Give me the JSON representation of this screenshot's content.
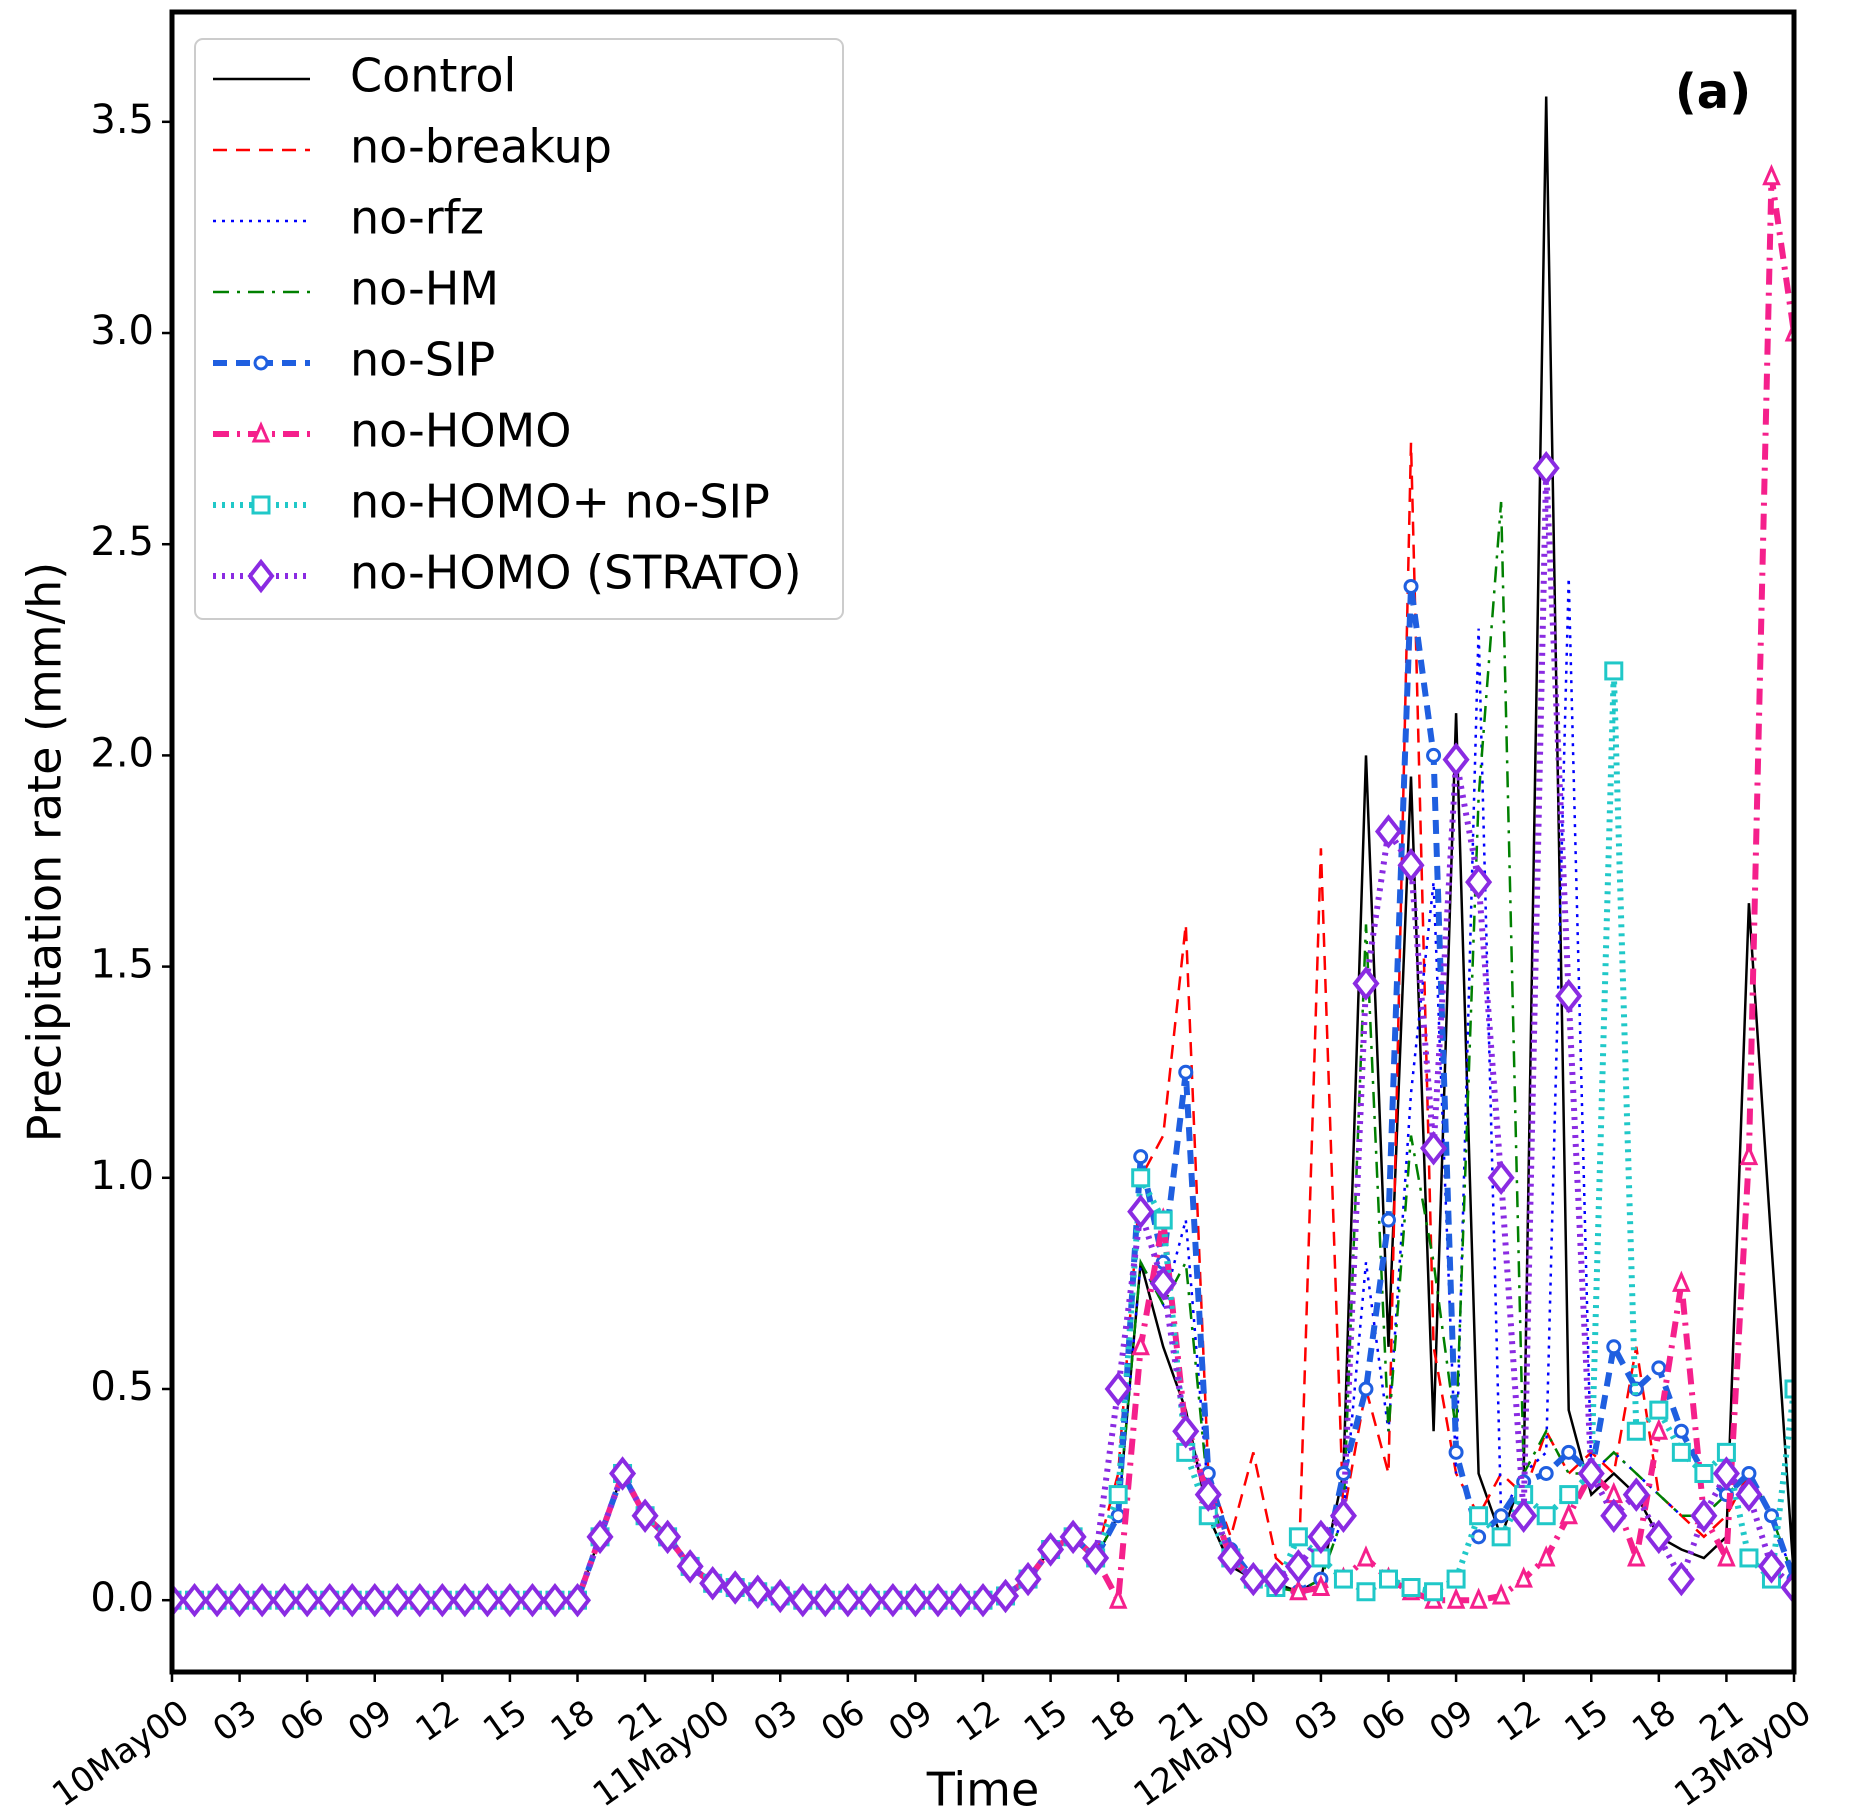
{
  "chart_data": {
    "type": "line",
    "xlabel": "Time",
    "ylabel": "Precipitation rate (mm/h)",
    "annotation": "(a)",
    "x": [
      0,
      1,
      2,
      3,
      4,
      5,
      6,
      7,
      8,
      9,
      10,
      11,
      12,
      13,
      14,
      15,
      16,
      17,
      18,
      19,
      20,
      21,
      22,
      23,
      24,
      25,
      26,
      27,
      28,
      29,
      30,
      31,
      32,
      33,
      34,
      35,
      36,
      37,
      38,
      39,
      40,
      41,
      42,
      43,
      44,
      45,
      46,
      47,
      48,
      49,
      50,
      51,
      52,
      53,
      54,
      55,
      56,
      57,
      58,
      59,
      60,
      61,
      62,
      63,
      64,
      65,
      66,
      67,
      68,
      69,
      70,
      71,
      72
    ],
    "xlim": [
      0,
      72
    ],
    "xticks": [
      {
        "value": 0,
        "label": "10May00"
      },
      {
        "value": 3,
        "label": "03"
      },
      {
        "value": 6,
        "label": "06"
      },
      {
        "value": 9,
        "label": "09"
      },
      {
        "value": 12,
        "label": "12"
      },
      {
        "value": 15,
        "label": "15"
      },
      {
        "value": 18,
        "label": "18"
      },
      {
        "value": 21,
        "label": "21"
      },
      {
        "value": 24,
        "label": "11May00"
      },
      {
        "value": 27,
        "label": "03"
      },
      {
        "value": 30,
        "label": "06"
      },
      {
        "value": 33,
        "label": "09"
      },
      {
        "value": 36,
        "label": "12"
      },
      {
        "value": 39,
        "label": "15"
      },
      {
        "value": 42,
        "label": "18"
      },
      {
        "value": 45,
        "label": "21"
      },
      {
        "value": 48,
        "label": "12May00"
      },
      {
        "value": 51,
        "label": "03"
      },
      {
        "value": 54,
        "label": "06"
      },
      {
        "value": 57,
        "label": "09"
      },
      {
        "value": 60,
        "label": "12"
      },
      {
        "value": 63,
        "label": "15"
      },
      {
        "value": 66,
        "label": "18"
      },
      {
        "value": 69,
        "label": "21"
      },
      {
        "value": 72,
        "label": "13May00"
      }
    ],
    "ylim": [
      -0.17,
      3.76
    ],
    "yticks": [
      {
        "value": 0,
        "label": "0.0"
      },
      {
        "value": 0.5,
        "label": "0.5"
      },
      {
        "value": 1,
        "label": "1.0"
      },
      {
        "value": 1.5,
        "label": "1.5"
      },
      {
        "value": 2,
        "label": "2.0"
      },
      {
        "value": 2.5,
        "label": "2.5"
      },
      {
        "value": 3,
        "label": "3.0"
      },
      {
        "value": 3.5,
        "label": "3.5"
      }
    ],
    "legend": "upper left",
    "series": [
      {
        "name": "Control",
        "color": "#000000",
        "linestyle": "solid",
        "marker": "none",
        "values": [
          0,
          0,
          0,
          0,
          0,
          0,
          0,
          0,
          0,
          0,
          0,
          0,
          0,
          0,
          0,
          0,
          0,
          0,
          0,
          0.15,
          0.3,
          0.2,
          0.15,
          0.08,
          0.04,
          0.03,
          0.02,
          0.01,
          0,
          0,
          0,
          0,
          0,
          0,
          0,
          0,
          0,
          0.01,
          0.05,
          0.12,
          0.15,
          0.1,
          0.2,
          0.8,
          0.6,
          0.45,
          0.2,
          0.08,
          0.05,
          0.04,
          0.02,
          0.05,
          0.3,
          2.0,
          0.6,
          1.95,
          0.4,
          2.1,
          0.3,
          0.15,
          0.3,
          3.56,
          0.45,
          0.25,
          0.3,
          0.25,
          0.15,
          0.12,
          0.1,
          0.15,
          1.65,
          0.84,
          0.05
        ]
      },
      {
        "name": "no-breakup",
        "color": "#ff0000",
        "linestyle": "dashed",
        "marker": "none",
        "values": [
          0,
          0,
          0,
          0,
          0,
          0,
          0,
          0,
          0,
          0,
          0,
          0,
          0,
          0,
          0,
          0,
          0,
          0,
          0,
          0.15,
          0.3,
          0.2,
          0.15,
          0.08,
          0.04,
          0.03,
          0.02,
          0.01,
          0,
          0,
          0,
          0,
          0,
          0,
          0,
          0,
          0,
          0.01,
          0.05,
          0.12,
          0.15,
          0.1,
          0.3,
          1.0,
          1.1,
          1.6,
          0.3,
          0.15,
          0.35,
          0.1,
          0.05,
          1.78,
          0.2,
          0.5,
          0.3,
          2.74,
          0.6,
          0.3,
          0.2,
          0.3,
          0.25,
          0.4,
          0.3,
          0.35,
          0.3,
          0.6,
          0.25,
          0.2,
          0.15,
          0.2,
          0.3,
          0.2,
          0.05
        ]
      },
      {
        "name": "no-rfz",
        "color": "#0000ff",
        "linestyle": "dotted",
        "marker": "none",
        "values": [
          0,
          0,
          0,
          0,
          0,
          0,
          0,
          0,
          0,
          0,
          0,
          0,
          0,
          0,
          0,
          0,
          0,
          0,
          0,
          0.15,
          0.3,
          0.2,
          0.15,
          0.08,
          0.04,
          0.03,
          0.02,
          0.01,
          0,
          0,
          0,
          0,
          0,
          0,
          0,
          0,
          0,
          0.01,
          0.05,
          0.12,
          0.15,
          0.1,
          0.2,
          0.8,
          0.7,
          0.9,
          0.25,
          0.1,
          0.05,
          0.03,
          0.02,
          0.05,
          0.2,
          0.8,
          0.4,
          1.2,
          1.7,
          0.3,
          2.3,
          0.2,
          0.3,
          0.35,
          2.42,
          0.3,
          0.35,
          0.3,
          0.25,
          0.2,
          0.2,
          0.25,
          0.3,
          0.2,
          0.05
        ]
      },
      {
        "name": "no-HM",
        "color": "#008000",
        "linestyle": "dashdot",
        "marker": "none",
        "values": [
          0,
          0,
          0,
          0,
          0,
          0,
          0,
          0,
          0,
          0,
          0,
          0,
          0,
          0,
          0,
          0,
          0,
          0,
          0,
          0.15,
          0.3,
          0.2,
          0.15,
          0.08,
          0.04,
          0.03,
          0.02,
          0.01,
          0,
          0,
          0,
          0,
          0,
          0,
          0,
          0,
          0,
          0.01,
          0.05,
          0.12,
          0.15,
          0.1,
          0.2,
          0.8,
          0.7,
          0.8,
          0.25,
          0.1,
          0.05,
          0.03,
          0.02,
          0.05,
          0.2,
          1.6,
          0.4,
          1.1,
          0.8,
          0.4,
          1.9,
          2.6,
          0.3,
          0.4,
          0.3,
          0.3,
          0.35,
          0.3,
          0.25,
          0.2,
          0.2,
          0.25,
          0.3,
          0.2,
          0.05
        ]
      },
      {
        "name": "no-SIP",
        "color": "#1f5fe0",
        "linestyle": "dashed",
        "marker": "o",
        "values": [
          0,
          0,
          0,
          0,
          0,
          0,
          0,
          0,
          0,
          0,
          0,
          0,
          0,
          0,
          0,
          0,
          0,
          0,
          0,
          0.15,
          0.3,
          0.2,
          0.15,
          0.08,
          0.04,
          0.03,
          0.02,
          0.01,
          0,
          0,
          0,
          0,
          0,
          0,
          0,
          0,
          0,
          0.01,
          0.05,
          0.12,
          0.15,
          0.1,
          0.2,
          1.05,
          0.8,
          1.25,
          0.3,
          0.12,
          0.05,
          0.03,
          0.02,
          0.05,
          0.3,
          0.5,
          0.9,
          2.4,
          2.0,
          0.35,
          0.15,
          0.2,
          0.28,
          0.3,
          0.35,
          0.3,
          0.6,
          0.5,
          0.55,
          0.4,
          0.3,
          0.25,
          0.3,
          0.2,
          0.05
        ]
      },
      {
        "name": "no-HOMO",
        "color": "#f5208c",
        "linestyle": "dashdot",
        "marker": "^",
        "values": [
          0,
          0,
          0,
          0,
          0,
          0,
          0,
          0,
          0,
          0,
          0,
          0,
          0,
          0,
          0,
          0,
          0,
          0,
          0,
          0.15,
          0.3,
          0.2,
          0.15,
          0.08,
          0.04,
          0.03,
          0.02,
          0.01,
          0,
          0,
          0,
          0,
          0,
          0,
          0,
          0,
          0,
          0.01,
          0.05,
          0.12,
          0.15,
          0.1,
          0,
          0.6,
          0.9,
          0.4,
          0.25,
          0.1,
          0.05,
          0.03,
          0.02,
          0.03,
          0.05,
          0.1,
          0.05,
          0.02,
          0,
          0,
          0,
          0.01,
          0.05,
          0.1,
          0.2,
          0.3,
          0.25,
          0.1,
          0.4,
          0.75,
          0.2,
          0.1,
          1.05,
          3.37,
          3.0
        ]
      },
      {
        "name": "no-HOMO+ no-SIP",
        "color": "#20c8c8",
        "linestyle": "dotted",
        "marker": "s",
        "values": [
          0,
          0,
          0,
          0,
          0,
          0,
          0,
          0,
          0,
          0,
          0,
          0,
          0,
          0,
          0,
          0,
          0,
          0,
          0,
          0.15,
          0.3,
          0.2,
          0.15,
          0.08,
          0.04,
          0.03,
          0.02,
          0.01,
          0,
          0,
          0,
          0,
          0,
          0,
          0,
          0,
          0,
          0.01,
          0.05,
          0.12,
          0.15,
          0.1,
          0.25,
          1.0,
          0.9,
          0.35,
          0.2,
          0.1,
          0.05,
          0.03,
          0.15,
          0.1,
          0.05,
          0.02,
          0.05,
          0.03,
          0.02,
          0.05,
          0.2,
          0.15,
          0.25,
          0.2,
          0.25,
          0.3,
          2.2,
          0.4,
          0.45,
          0.35,
          0.3,
          0.35,
          0.1,
          0.05,
          0.5
        ]
      },
      {
        "name": "no-HOMO (STRATO)",
        "color": "#8a2be2",
        "linestyle": "dotted",
        "marker": "D",
        "values": [
          0,
          0,
          0,
          0,
          0,
          0,
          0,
          0,
          0,
          0,
          0,
          0,
          0,
          0,
          0,
          0,
          0,
          0,
          0,
          0.15,
          0.3,
          0.2,
          0.15,
          0.08,
          0.04,
          0.03,
          0.02,
          0.01,
          0,
          0,
          0,
          0,
          0,
          0,
          0,
          0,
          0,
          0.01,
          0.05,
          0.12,
          0.15,
          0.1,
          0.5,
          0.92,
          0.75,
          0.4,
          0.25,
          0.1,
          0.05,
          0.05,
          0.08,
          0.15,
          0.2,
          1.46,
          1.82,
          1.74,
          1.07,
          1.99,
          1.7,
          1.0,
          0.2,
          2.68,
          1.43,
          0.3,
          0.2,
          0.25,
          0.15,
          0.05,
          0.2,
          0.3,
          0.25,
          0.08,
          0.03
        ]
      }
    ]
  }
}
